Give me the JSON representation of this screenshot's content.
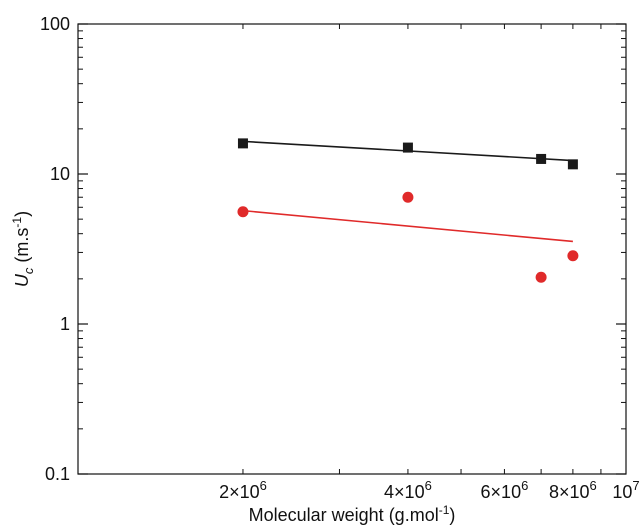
{
  "chart_data": {
    "type": "scatter",
    "x_scale": "log",
    "y_scale": "log",
    "xlim": [
      1000000,
      10000000
    ],
    "ylim": [
      0.1,
      100
    ],
    "grid": false,
    "legend": "none",
    "xlabel": {
      "text": "Molecular weight (g.mol",
      "sup": "-1",
      "tail": ")"
    },
    "ylabel": {
      "main": "U",
      "sub": "c",
      "text": " (m.s",
      "sup": "-1",
      "tail": ")"
    },
    "x_ticks": [
      {
        "value": 2000000,
        "mant": "2×10",
        "exp": "6"
      },
      {
        "value": 4000000,
        "mant": "4×10",
        "exp": "6"
      },
      {
        "value": 6000000,
        "mant": "6×10",
        "exp": "6"
      },
      {
        "value": 8000000,
        "mant": "8×10",
        "exp": "6"
      },
      {
        "value": 10000000,
        "mant": "10",
        "exp": "7"
      }
    ],
    "y_ticks": [
      {
        "value": 0.1,
        "label": "0.1"
      },
      {
        "value": 1,
        "label": "1"
      },
      {
        "value": 10,
        "label": "10"
      },
      {
        "value": 100,
        "label": "100"
      }
    ],
    "series": [
      {
        "marker": "square",
        "color": "#1a1a1a",
        "points": [
          [
            2000000,
            16.0
          ],
          [
            4000000,
            15.0
          ],
          [
            7000000,
            12.6
          ],
          [
            8000000,
            11.6
          ]
        ],
        "fit": [
          [
            2000000,
            16.5
          ],
          [
            8000000,
            12.3
          ]
        ]
      },
      {
        "marker": "circle",
        "color": "#e02a2a",
        "points": [
          [
            2000000,
            5.6
          ],
          [
            4000000,
            7.0
          ],
          [
            7000000,
            2.05
          ],
          [
            8000000,
            2.85
          ]
        ],
        "fit": [
          [
            2000000,
            5.7
          ],
          [
            8000000,
            3.55
          ]
        ]
      }
    ]
  }
}
